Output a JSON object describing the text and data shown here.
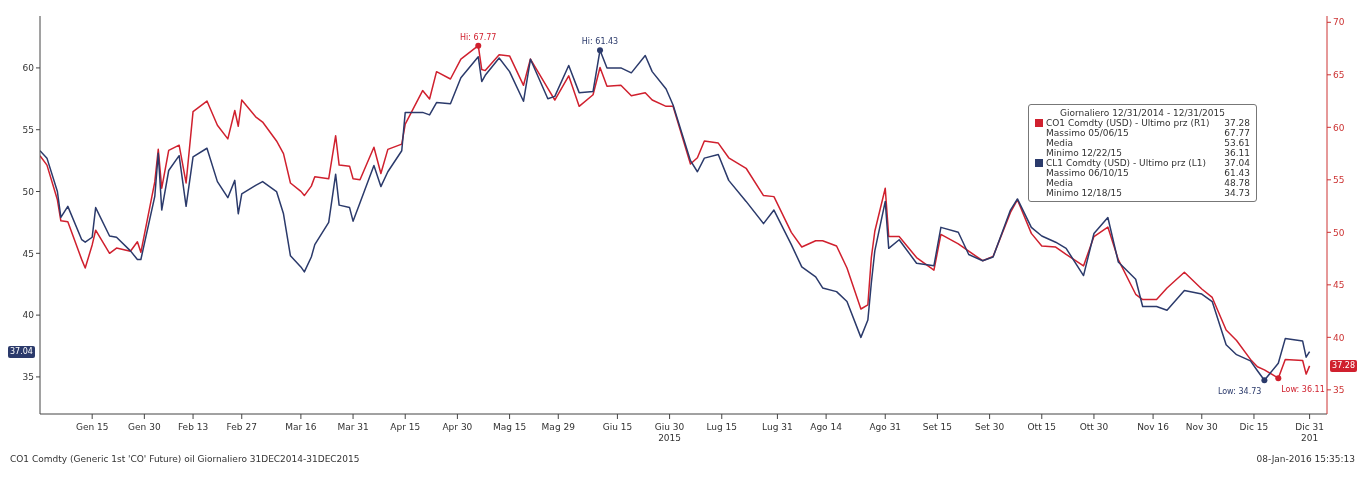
{
  "chart_data": {
    "type": "line",
    "legend_title": "Giornaliero 12/31/2014 - 12/31/2015",
    "x": [
      "2014-12-31",
      "2015-01-02",
      "2015-01-05",
      "2015-01-06",
      "2015-01-08",
      "2015-01-12",
      "2015-01-13",
      "2015-01-15",
      "2015-01-16",
      "2015-01-20",
      "2015-01-22",
      "2015-01-26",
      "2015-01-28",
      "2015-01-29",
      "2015-02-02",
      "2015-02-03",
      "2015-02-04",
      "2015-02-06",
      "2015-02-09",
      "2015-02-11",
      "2015-02-13",
      "2015-02-17",
      "2015-02-20",
      "2015-02-23",
      "2015-02-25",
      "2015-02-26",
      "2015-02-27",
      "2015-03-03",
      "2015-03-05",
      "2015-03-09",
      "2015-03-11",
      "2015-03-13",
      "2015-03-16",
      "2015-03-17",
      "2015-03-19",
      "2015-03-20",
      "2015-03-24",
      "2015-03-26",
      "2015-03-27",
      "2015-03-30",
      "2015-03-31",
      "2015-04-02",
      "2015-04-06",
      "2015-04-08",
      "2015-04-10",
      "2015-04-14",
      "2015-04-15",
      "2015-04-20",
      "2015-04-22",
      "2015-04-24",
      "2015-04-28",
      "2015-05-01",
      "2015-05-06",
      "2015-05-07",
      "2015-05-08",
      "2015-05-12",
      "2015-05-15",
      "2015-05-19",
      "2015-05-21",
      "2015-05-26",
      "2015-05-28",
      "2015-06-01",
      "2015-06-04",
      "2015-06-08",
      "2015-06-10",
      "2015-06-12",
      "2015-06-16",
      "2015-06-19",
      "2015-06-23",
      "2015-06-25",
      "2015-06-29",
      "2015-07-01",
      "2015-07-06",
      "2015-07-08",
      "2015-07-10",
      "2015-07-14",
      "2015-07-17",
      "2015-07-22",
      "2015-07-27",
      "2015-07-30",
      "2015-08-04",
      "2015-08-07",
      "2015-08-11",
      "2015-08-13",
      "2015-08-17",
      "2015-08-20",
      "2015-08-24",
      "2015-08-26",
      "2015-08-27",
      "2015-08-28",
      "2015-08-31",
      "2015-09-01",
      "2015-09-04",
      "2015-09-09",
      "2015-09-14",
      "2015-09-16",
      "2015-09-21",
      "2015-09-24",
      "2015-09-28",
      "2015-10-01",
      "2015-10-06",
      "2015-10-08",
      "2015-10-12",
      "2015-10-15",
      "2015-10-19",
      "2015-10-22",
      "2015-10-27",
      "2015-10-30",
      "2015-11-03",
      "2015-11-06",
      "2015-11-11",
      "2015-11-13",
      "2015-11-17",
      "2015-11-20",
      "2015-11-25",
      "2015-11-30",
      "2015-12-03",
      "2015-12-07",
      "2015-12-10",
      "2015-12-14",
      "2015-12-16",
      "2015-12-18",
      "2015-12-22",
      "2015-12-24",
      "2015-12-29",
      "2015-12-30",
      "2015-12-31"
    ],
    "series": [
      {
        "name": "CO1 Comdty (USD) - Ultimo prz (R1)",
        "color": "#d0202e",
        "axis": "y2",
        "values": [
          57.3,
          56.4,
          53.1,
          51.1,
          51.0,
          47.4,
          46.6,
          48.8,
          50.2,
          48.0,
          48.5,
          48.2,
          49.1,
          48.1,
          54.8,
          57.9,
          54.2,
          57.8,
          58.3,
          54.7,
          61.5,
          62.5,
          60.2,
          58.9,
          61.6,
          60.1,
          62.6,
          61.0,
          60.5,
          58.7,
          57.5,
          54.7,
          53.9,
          53.5,
          54.4,
          55.3,
          55.1,
          59.2,
          56.4,
          56.3,
          55.1,
          55.0,
          58.1,
          55.6,
          57.9,
          58.4,
          60.3,
          63.5,
          62.7,
          65.3,
          64.6,
          66.5,
          67.77,
          65.5,
          65.4,
          66.9,
          66.8,
          64.0,
          66.5,
          63.7,
          62.6,
          64.9,
          62.0,
          63.1,
          65.7,
          63.9,
          64.0,
          63.0,
          63.3,
          62.6,
          62.0,
          62.0,
          56.5,
          57.1,
          58.7,
          58.5,
          57.1,
          56.1,
          53.5,
          53.4,
          50.0,
          48.6,
          49.2,
          49.2,
          48.7,
          46.6,
          42.7,
          43.1,
          47.6,
          50.1,
          54.2,
          49.6,
          49.6,
          47.6,
          46.4,
          49.8,
          48.9,
          48.2,
          47.3,
          47.7,
          51.9,
          53.1,
          49.9,
          48.7,
          48.6,
          47.9,
          46.8,
          49.6,
          50.5,
          47.4,
          44.1,
          43.6,
          43.6,
          44.7,
          46.2,
          44.6,
          43.8,
          40.7,
          39.7,
          37.9,
          37.2,
          36.9,
          36.11,
          37.9,
          37.8,
          36.5,
          37.28
        ]
      },
      {
        "name": "CL1 Comdty (USD) - Ultimo prz (L1)",
        "color": "#2b3a6b",
        "axis": "y",
        "values": [
          53.3,
          52.7,
          50.0,
          47.9,
          48.8,
          46.1,
          45.9,
          46.3,
          48.7,
          46.4,
          46.3,
          45.2,
          44.5,
          44.5,
          49.6,
          53.1,
          48.5,
          51.7,
          52.9,
          48.8,
          52.8,
          53.5,
          50.8,
          49.5,
          50.9,
          48.2,
          49.8,
          50.5,
          50.8,
          50.0,
          48.2,
          44.8,
          43.9,
          43.5,
          44.7,
          45.7,
          47.5,
          51.4,
          48.9,
          48.7,
          47.6,
          49.1,
          52.1,
          50.4,
          51.6,
          53.3,
          56.4,
          56.4,
          56.2,
          57.2,
          57.1,
          59.2,
          60.9,
          58.9,
          59.4,
          60.8,
          59.7,
          57.3,
          60.7,
          57.5,
          57.7,
          60.2,
          58.0,
          58.1,
          61.43,
          60.0,
          60.0,
          59.6,
          61.0,
          59.7,
          58.3,
          57.0,
          52.5,
          51.6,
          52.7,
          53.0,
          50.9,
          49.2,
          47.4,
          48.5,
          45.7,
          43.9,
          43.1,
          42.2,
          41.9,
          41.1,
          38.2,
          39.6,
          42.6,
          45.2,
          49.2,
          45.4,
          46.1,
          44.2,
          44.0,
          47.1,
          46.7,
          44.9,
          44.4,
          44.7,
          48.5,
          49.4,
          47.1,
          46.4,
          45.9,
          45.4,
          43.2,
          46.6,
          47.9,
          44.3,
          42.9,
          40.7,
          40.7,
          40.4,
          42.0,
          41.7,
          41.1,
          37.6,
          36.8,
          36.3,
          35.5,
          34.73,
          36.1,
          38.1,
          37.9,
          36.6,
          37.04
        ]
      }
    ],
    "xlim": [
      "2014-12-31",
      "2016-01-05"
    ],
    "xticks": [
      {
        "value": "2015-01-15",
        "label": "Gen 15"
      },
      {
        "value": "2015-01-30",
        "label": "Gen 30"
      },
      {
        "value": "2015-02-13",
        "label": "Feb 13"
      },
      {
        "value": "2015-02-27",
        "label": "Feb 27"
      },
      {
        "value": "2015-03-16",
        "label": "Mar 16"
      },
      {
        "value": "2015-03-31",
        "label": "Mar 31"
      },
      {
        "value": "2015-04-15",
        "label": "Apr 15"
      },
      {
        "value": "2015-04-30",
        "label": "Apr 30"
      },
      {
        "value": "2015-05-15",
        "label": "Mag 15"
      },
      {
        "value": "2015-05-29",
        "label": "Mag 29"
      },
      {
        "value": "2015-06-15",
        "label": "Giu 15"
      },
      {
        "value": "2015-06-30",
        "label": "Giu 30\n2015"
      },
      {
        "value": "2015-07-15",
        "label": "Lug 15"
      },
      {
        "value": "2015-07-31",
        "label": "Lug 31"
      },
      {
        "value": "2015-08-14",
        "label": "Ago 14"
      },
      {
        "value": "2015-08-31",
        "label": "Ago 31"
      },
      {
        "value": "2015-09-15",
        "label": "Set 15"
      },
      {
        "value": "2015-09-30",
        "label": "Set 30"
      },
      {
        "value": "2015-10-15",
        "label": "Ott 15"
      },
      {
        "value": "2015-10-30",
        "label": "Ott 30"
      },
      {
        "value": "2015-11-16",
        "label": "Nov 16"
      },
      {
        "value": "2015-11-30",
        "label": "Nov 30"
      },
      {
        "value": "2015-12-15",
        "label": "Dic 15"
      },
      {
        "value": "2015-12-31",
        "label": "Dic 31\n201"
      }
    ],
    "ylim": [
      32,
      64.2
    ],
    "yticks": [
      35,
      40,
      45,
      50,
      55,
      60
    ],
    "y2lim": [
      32.7,
      70.6
    ],
    "y2ticks": [
      35,
      40,
      45,
      50,
      55,
      60,
      65,
      70
    ],
    "grid": false,
    "legend": "top right",
    "marker": "none",
    "line_style": "solid",
    "annotations": [
      "Massimo 05/06/15 67.77",
      "Media 53.61",
      "Minimo 12/22/15 36.11",
      "Massimo 06/10/15 61.43",
      "Media 48.78",
      "Minimo 12/18/15 34.73",
      "Hi: 67.77",
      "Hi: 61.43",
      "Low: 36.11",
      "Low: 34.73",
      "37.28",
      "37.04",
      "CO1 Comdty (Generic 1st 'CO' Future) oil  Giornaliero 31DEC2014-31DEC2015",
      "08-Jan-2016 15:35:13"
    ]
  }
}
